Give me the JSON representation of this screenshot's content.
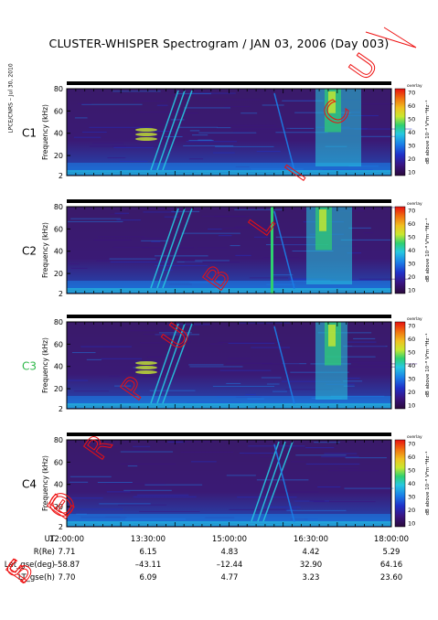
{
  "title": "CLUSTER-WHISPER Spectrogram / JAN 03, 2006 (Day 003)",
  "side_label": "LPCE/CNRS – Jul 30, 2010",
  "watermark": "FOR PUBLIC USE",
  "colors": {
    "c3_label": "#2fb84a",
    "spectrum": [
      "#2a0a3a",
      "#3a1480",
      "#2030c8",
      "#1b7fe8",
      "#27c8e0",
      "#2fd070",
      "#c8e830",
      "#f0c020",
      "#f07010",
      "#e81010"
    ],
    "annotation": "#ee1010"
  },
  "chart_data": {
    "type": "heatmap",
    "ylabel": "Frequency (kHz)",
    "colorbar_label": "dB above 10⁻⁸ V²m⁻²Hz⁻¹",
    "colorbar_header": "overlay",
    "colorbar_ticks": [
      "70",
      "60",
      "50",
      "40",
      "30",
      "20",
      "10"
    ],
    "clim": [
      10,
      70
    ],
    "ylim": [
      2,
      80
    ],
    "yticks": [
      "80",
      "60",
      "40",
      "20",
      "2"
    ],
    "xlim": [
      "12:00:00",
      "18:00:00"
    ],
    "panels": [
      {
        "name": "C1"
      },
      {
        "name": "C2"
      },
      {
        "name": "C3"
      },
      {
        "name": "C4"
      }
    ],
    "ephemeris": {
      "columns": [
        "12:00:00",
        "13:30:00",
        "15:00:00",
        "16:30:00",
        "18:00:00"
      ],
      "rows": [
        {
          "label": "UT",
          "values": [
            "12:00:00",
            "13:30:00",
            "15:00:00",
            "16:30:00",
            "18:00:00"
          ]
        },
        {
          "label": "R(Re)",
          "values": [
            "7.71",
            "6.15",
            "4.83",
            "4.42",
            "5.29"
          ]
        },
        {
          "label": "Lat_gse(deg)",
          "values": [
            "–58.87",
            "–43.11",
            "–12.44",
            "32.90",
            "64.16"
          ]
        },
        {
          "label": "LT_gse(h)",
          "values": [
            "7.70",
            "6.09",
            "4.77",
            "3.23",
            "23.60"
          ]
        }
      ]
    }
  }
}
